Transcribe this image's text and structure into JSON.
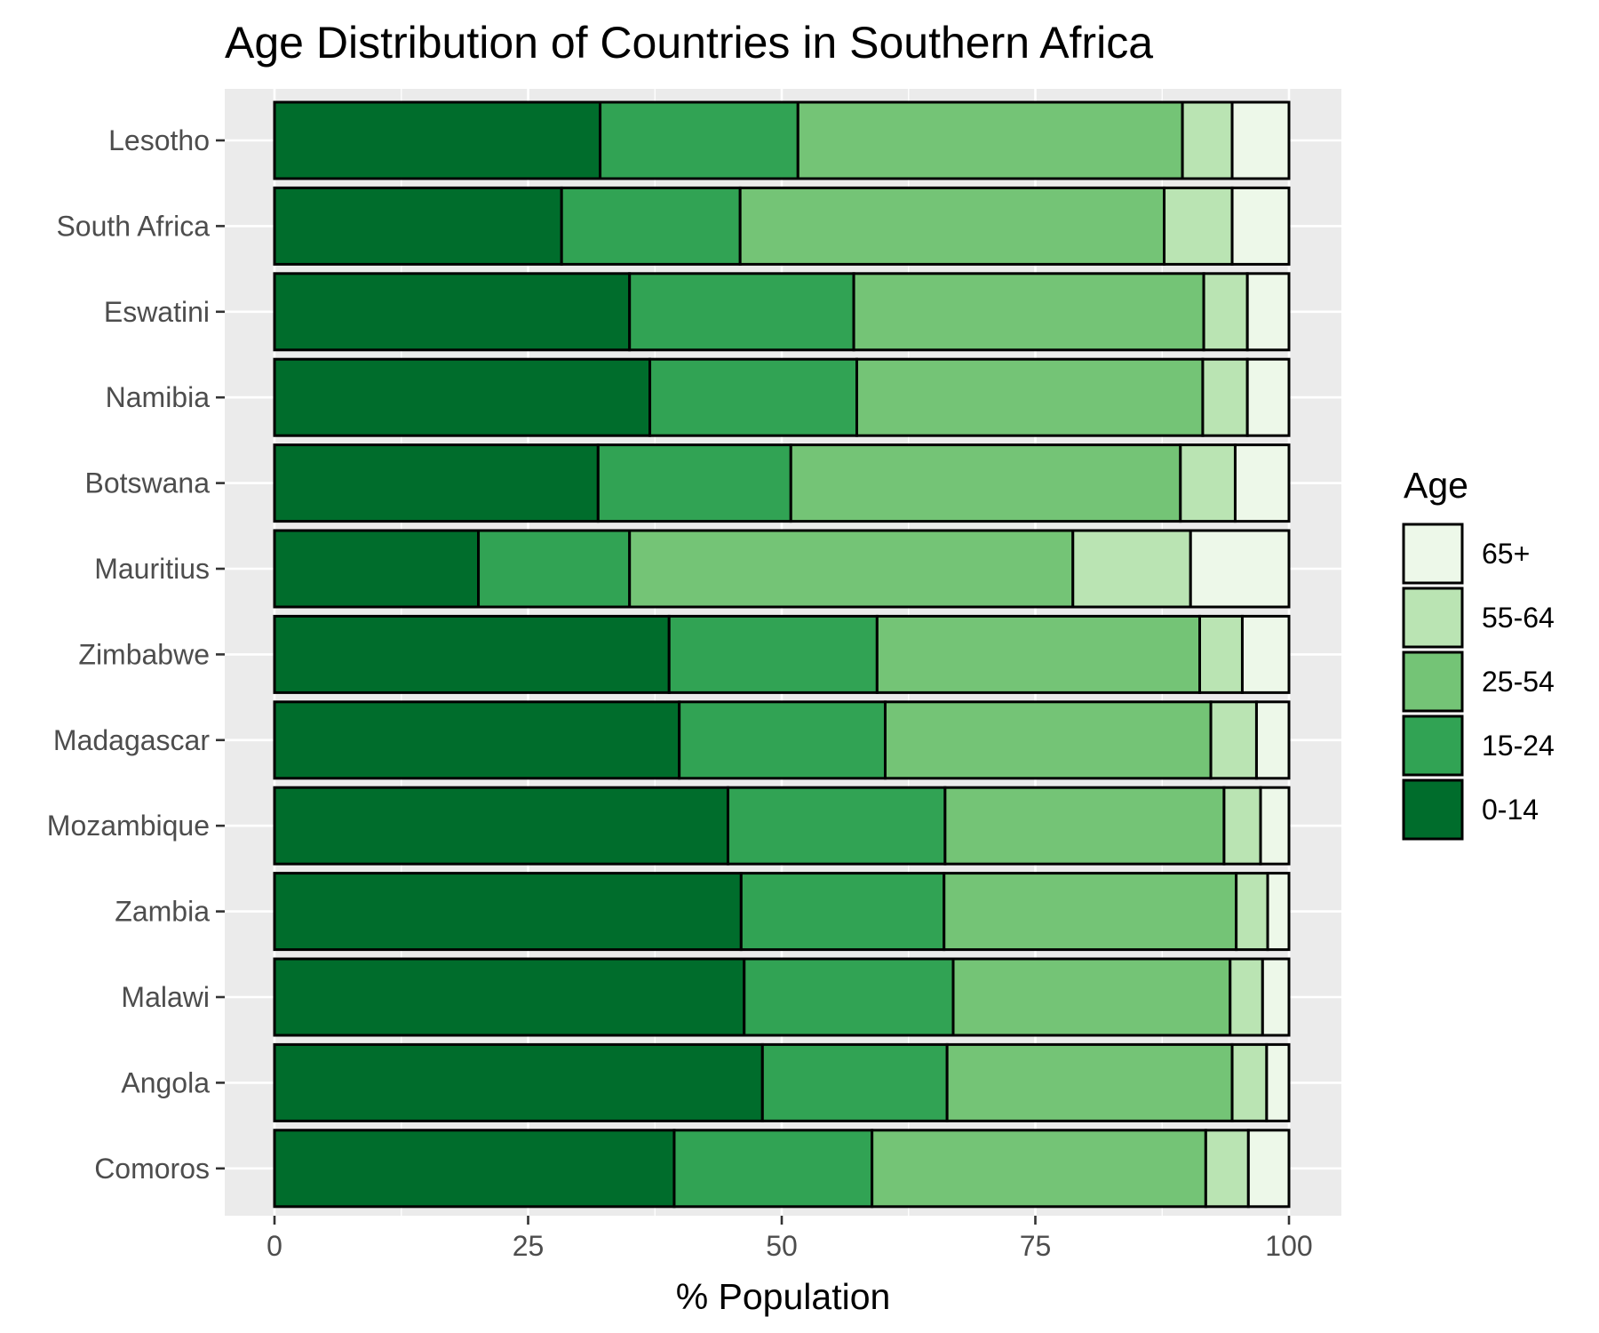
{
  "chart_data": {
    "type": "bar",
    "orientation": "horizontal",
    "stacked": true,
    "title": "Age Distribution of Countries in Southern Africa",
    "xlabel": "% Population",
    "ylabel": "",
    "xlim": [
      0,
      100
    ],
    "x_ticks": [
      0,
      25,
      50,
      75,
      100
    ],
    "x_tick_labels": [
      "0",
      "25",
      "50",
      "75",
      "100"
    ],
    "grid": true,
    "legend": {
      "title": "Age",
      "position": "right"
    },
    "categories": [
      "Lesotho",
      "South Africa",
      "Eswatini",
      "Namibia",
      "Botswana",
      "Mauritius",
      "Zimbabwe",
      "Madagascar",
      "Mozambique",
      "Zambia",
      "Malawi",
      "Angola",
      "Comoros"
    ],
    "series": [
      {
        "name": "0-14",
        "color": "#006d2c",
        "values": [
          32.1,
          28.3,
          35.0,
          37.0,
          31.9,
          20.1,
          38.9,
          39.9,
          44.7,
          46.0,
          46.3,
          48.1,
          39.4
        ]
      },
      {
        "name": "15-24",
        "color": "#31a354",
        "values": [
          19.5,
          17.6,
          22.1,
          20.4,
          19.0,
          14.9,
          20.5,
          20.3,
          21.4,
          20.0,
          20.6,
          18.2,
          19.5
        ]
      },
      {
        "name": "25-54",
        "color": "#74c476",
        "values": [
          37.9,
          41.8,
          34.5,
          34.1,
          38.4,
          43.7,
          31.8,
          32.1,
          27.5,
          28.8,
          27.3,
          28.1,
          32.9
        ]
      },
      {
        "name": "55-64",
        "color": "#bae4b3",
        "values": [
          4.9,
          6.7,
          4.3,
          4.4,
          5.4,
          11.6,
          4.2,
          4.5,
          3.6,
          3.1,
          3.2,
          3.4,
          4.2
        ]
      },
      {
        "name": "65+",
        "color": "#edf8e9",
        "values": [
          5.6,
          5.6,
          4.1,
          4.1,
          5.3,
          9.7,
          4.6,
          3.2,
          2.8,
          2.1,
          2.6,
          2.2,
          4.0
        ]
      }
    ],
    "legend_order": [
      "65+",
      "55-64",
      "25-54",
      "15-24",
      "0-14"
    ]
  }
}
